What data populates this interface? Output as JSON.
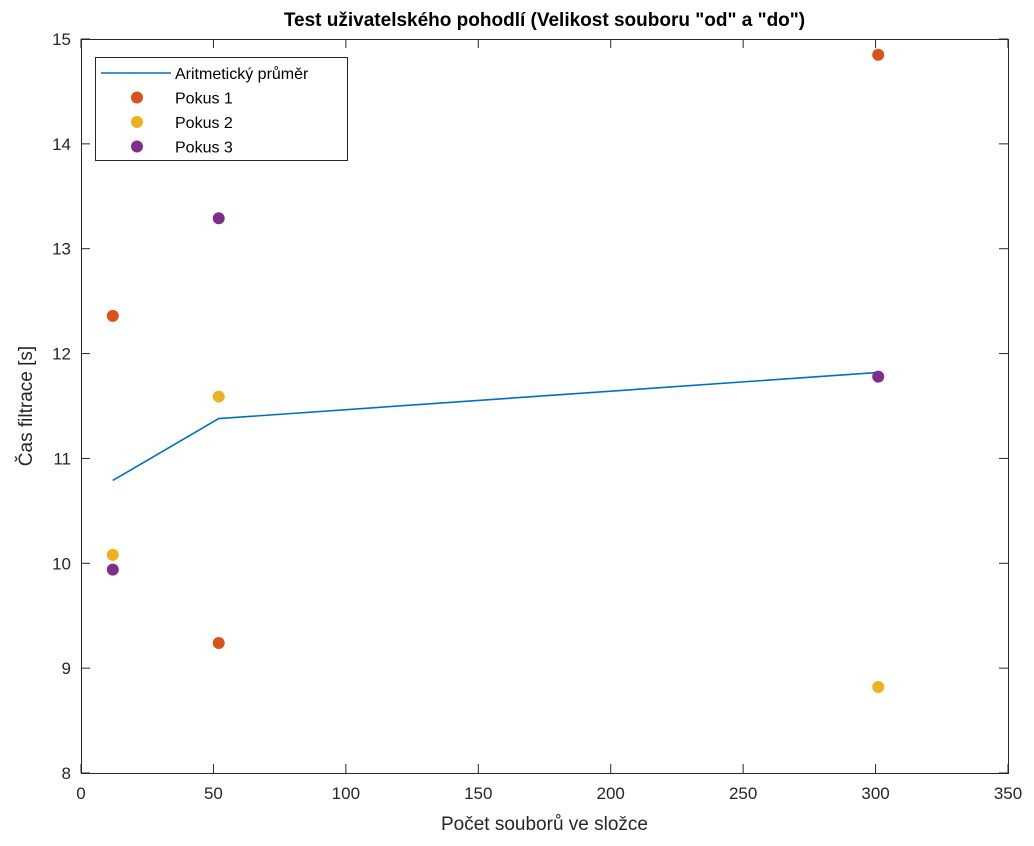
{
  "chart_data": {
    "type": "scatter",
    "title": "Test uživatelského pohodlí (Velikost souboru \"od\" a \"do\")",
    "xlabel": "Počet souborů ve složce",
    "ylabel": "Čas filtrace [s]",
    "xlim": [
      0,
      350
    ],
    "ylim": [
      8,
      15
    ],
    "xticks": [
      0,
      50,
      100,
      150,
      200,
      250,
      300,
      350
    ],
    "yticks": [
      8,
      9,
      10,
      11,
      12,
      13,
      14,
      15
    ],
    "grid": false,
    "legend_position": "top-left",
    "series": [
      {
        "name": "Aritmetický průměr",
        "kind": "line",
        "color": "#0072BD",
        "x": [
          12,
          52,
          301
        ],
        "y": [
          10.79,
          11.38,
          11.82
        ]
      },
      {
        "name": "Pokus 1",
        "kind": "scatter",
        "color": "#D95319",
        "x": [
          12,
          52,
          301
        ],
        "y": [
          12.36,
          9.24,
          14.85
        ]
      },
      {
        "name": "Pokus 2",
        "kind": "scatter",
        "color": "#EDB120",
        "x": [
          12,
          52,
          301
        ],
        "y": [
          10.08,
          11.59,
          8.82
        ]
      },
      {
        "name": "Pokus 3",
        "kind": "scatter",
        "color": "#7E2F8E",
        "x": [
          12,
          52,
          301
        ],
        "y": [
          9.94,
          13.29,
          11.78
        ]
      }
    ]
  }
}
